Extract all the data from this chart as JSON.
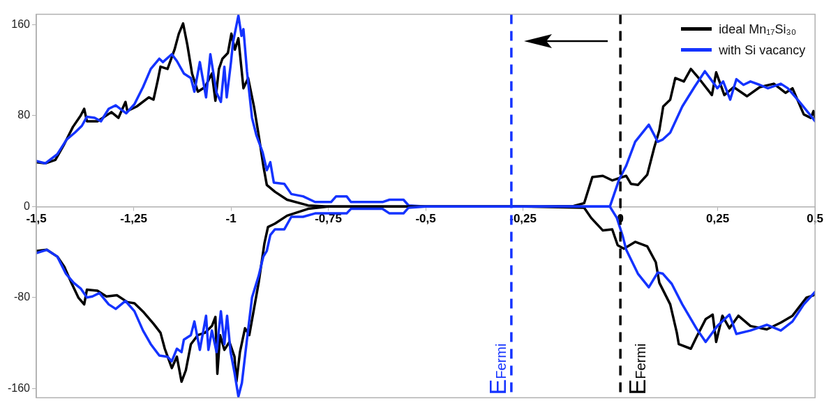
{
  "chart_data": {
    "type": "line",
    "xlim": [
      -1.5,
      0.5
    ],
    "ylim": [
      -168,
      169
    ],
    "xticks": [
      {
        "value": -1.5,
        "label": "-1,5"
      },
      {
        "value": -1.25,
        "label": "-1,25"
      },
      {
        "value": -1,
        "label": "-1"
      },
      {
        "value": -0.75,
        "label": "-0,75"
      },
      {
        "value": -0.5,
        "label": "-0,5"
      },
      {
        "value": -0.25,
        "label": "-0,25"
      },
      {
        "value": 0,
        "label": "0"
      },
      {
        "value": 0.25,
        "label": "0,25"
      },
      {
        "value": 0.5,
        "label": "0,5"
      }
    ],
    "yticks": [
      -160,
      -80,
      0,
      80,
      160
    ],
    "marker": "none",
    "line_style": "solid",
    "legend": "top right",
    "ref_lines": [
      {
        "axis": "x",
        "value": -0.28,
        "label": "E$_{Fermi}$",
        "color": "#1433ff",
        "line_style": "dashed"
      },
      {
        "axis": "x",
        "value": 0,
        "label": "E$_{Fermi}$",
        "color": "#000000",
        "line_style": "dashed"
      }
    ],
    "series": [
      {
        "name": "ideal Mn₁₇Si₃₀",
        "color": "#000000",
        "x": [
          -1.5,
          -1.477,
          -1.451,
          -1.428,
          -1.406,
          -1.386,
          -1.377,
          -1.37,
          -1.343,
          -1.307,
          -1.289,
          -1.271,
          -1.266,
          -1.242,
          -1.211,
          -1.199,
          -1.188,
          -1.181,
          -1.163,
          -1.145,
          -1.134,
          -1.123,
          -1.112,
          -1.1,
          -1.085,
          -1.067,
          -1.049,
          -1.04,
          -1.031,
          -1.022,
          -1.008,
          -0.999,
          -0.99,
          -0.981,
          -0.968,
          -0.956,
          -0.941,
          -0.929,
          -0.917,
          -0.908,
          -0.887,
          -0.856,
          -0.802,
          -0.75,
          -0.5,
          -0.25,
          -0.12,
          -0.093,
          -0.072,
          -0.045,
          -0.021,
          0.015,
          0.027,
          0.045,
          0.069,
          0.087,
          0.1,
          0.11,
          0.128,
          0.141,
          0.163,
          0.181,
          0.201,
          0.235,
          0.246,
          0.267,
          0.291,
          0.325,
          0.358,
          0.394,
          0.424,
          0.442,
          0.471,
          0.489,
          0.496,
          0.5
        ],
        "values": [
          39,
          38,
          41,
          55,
          70,
          80,
          86,
          75,
          75,
          83,
          78,
          92,
          84,
          88,
          96,
          94,
          111,
          123,
          121,
          138,
          152,
          161,
          142,
          117,
          101,
          105,
          117,
          93,
          121,
          130,
          135,
          152,
          138,
          148,
          104,
          113,
          88,
          63,
          36,
          19,
          13,
          6,
          1,
          0,
          0,
          0,
          0.5,
          3,
          26,
          27,
          23,
          27,
          20,
          19,
          28,
          52,
          67,
          88,
          94,
          113,
          110,
          121,
          113,
          98,
          118,
          98,
          105,
          97,
          105,
          108,
          100,
          104,
          81,
          78,
          84,
          78
        ]
      },
      {
        "name": "with Si vacancy",
        "color": "#1433ff",
        "x": [
          -1.5,
          -1.477,
          -1.446,
          -1.422,
          -1.401,
          -1.383,
          -1.37,
          -1.35,
          -1.334,
          -1.314,
          -1.296,
          -1.269,
          -1.248,
          -1.226,
          -1.206,
          -1.184,
          -1.175,
          -1.152,
          -1.139,
          -1.121,
          -1.103,
          -1.094,
          -1.08,
          -1.064,
          -1.053,
          -1.037,
          -1.026,
          -1.017,
          -1.011,
          -1,
          -0.995,
          -0.981,
          -0.973,
          -0.968,
          -0.959,
          -0.946,
          -0.935,
          -0.919,
          -0.908,
          -0.899,
          -0.89,
          -0.863,
          -0.845,
          -0.815,
          -0.784,
          -0.743,
          -0.73,
          -0.703,
          -0.692,
          -0.611,
          -0.593,
          -0.557,
          -0.544,
          -0.5,
          -0.25,
          -0.027,
          -0.003,
          0.015,
          0.038,
          0.073,
          0.096,
          0.109,
          0.128,
          0.159,
          0.19,
          0.217,
          0.249,
          0.264,
          0.282,
          0.298,
          0.316,
          0.334,
          0.358,
          0.379,
          0.412,
          0.43,
          0.46,
          0.484,
          0.5
        ],
        "values": [
          40,
          38,
          46,
          59,
          65,
          71,
          79,
          78,
          75,
          86,
          89,
          82,
          90,
          105,
          121,
          130,
          127,
          134,
          128,
          117,
          113,
          101,
          127,
          96,
          134,
          100,
          92,
          123,
          96,
          127,
          144,
          168,
          150,
          156,
          119,
          78,
          63,
          48,
          32,
          39,
          21,
          20,
          11,
          9,
          4,
          4,
          9,
          9,
          4,
          4,
          6,
          6,
          1,
          0,
          0,
          0,
          24,
          36,
          57,
          72,
          57,
          59,
          65,
          88,
          105,
          119,
          104,
          110,
          94,
          112,
          107,
          110,
          107,
          104,
          108,
          104,
          92,
          82,
          75
        ]
      },
      {
        "color": "#000000",
        "x": [
          -1.5,
          -1.473,
          -1.446,
          -1.428,
          -1.41,
          -1.392,
          -1.377,
          -1.37,
          -1.343,
          -1.32,
          -1.293,
          -1.266,
          -1.248,
          -1.224,
          -1.199,
          -1.181,
          -1.17,
          -1.152,
          -1.139,
          -1.127,
          -1.116,
          -1.103,
          -1.085,
          -1.067,
          -1.049,
          -1.04,
          -1.035,
          -1.028,
          -1.017,
          -1.004,
          -0.991,
          -0.986,
          -0.977,
          -0.964,
          -0.953,
          -0.941,
          -0.929,
          -0.914,
          -0.905,
          -0.887,
          -0.856,
          -0.802,
          -0.75,
          -0.5,
          -0.25,
          -0.093,
          -0.075,
          -0.045,
          -0.021,
          -0.007,
          0.009,
          0.038,
          0.069,
          0.091,
          0.1,
          0.128,
          0.145,
          0.15,
          0.181,
          0.195,
          0.219,
          0.237,
          0.246,
          0.262,
          0.28,
          0.303,
          0.334,
          0.376,
          0.412,
          0.442,
          0.478,
          0.496,
          0.5
        ],
        "values": [
          -39,
          -38,
          -44,
          -53,
          -67,
          -80,
          -86,
          -73,
          -74,
          -79,
          -78,
          -84,
          -85,
          -93,
          -103,
          -111,
          -125,
          -142,
          -132,
          -154,
          -144,
          -121,
          -113,
          -111,
          -105,
          -97,
          -147,
          -113,
          -126,
          -119,
          -132,
          -154,
          -128,
          -107,
          -113,
          -90,
          -67,
          -32,
          -18,
          -15,
          -8,
          -2,
          0,
          0,
          0,
          -1,
          -10,
          -21,
          -20,
          -34,
          -37,
          -31,
          -35,
          -49,
          -67,
          -86,
          -111,
          -121,
          -125,
          -115,
          -99,
          -95,
          -119,
          -96,
          -107,
          -96,
          -105,
          -108,
          -102,
          -96,
          -80,
          -78,
          -76
        ]
      },
      {
        "color": "#1433ff",
        "x": [
          -1.5,
          -1.473,
          -1.446,
          -1.424,
          -1.404,
          -1.386,
          -1.37,
          -1.356,
          -1.338,
          -1.314,
          -1.296,
          -1.271,
          -1.248,
          -1.226,
          -1.206,
          -1.184,
          -1.163,
          -1.152,
          -1.139,
          -1.127,
          -1.121,
          -1.103,
          -1.094,
          -1.08,
          -1.064,
          -1.058,
          -1.049,
          -1.037,
          -1.026,
          -1.017,
          -1.01,
          -1.001,
          -0.991,
          -0.981,
          -0.972,
          -0.959,
          -0.946,
          -0.929,
          -0.917,
          -0.908,
          -0.899,
          -0.887,
          -0.863,
          -0.845,
          -0.815,
          -0.784,
          -0.737,
          -0.703,
          -0.692,
          -0.611,
          -0.593,
          -0.557,
          -0.544,
          -0.5,
          -0.25,
          -0.027,
          -0.009,
          0.006,
          0.015,
          0.045,
          0.073,
          0.096,
          0.109,
          0.132,
          0.159,
          0.195,
          0.219,
          0.249,
          0.28,
          0.298,
          0.334,
          0.376,
          0.412,
          0.442,
          0.471,
          0.5
        ],
        "values": [
          -41,
          -38,
          -44,
          -59,
          -67,
          -72,
          -80,
          -79,
          -76,
          -86,
          -90,
          -83,
          -92,
          -109,
          -121,
          -131,
          -132,
          -136,
          -125,
          -128,
          -117,
          -113,
          -101,
          -126,
          -96,
          -126,
          -109,
          -128,
          -92,
          -121,
          -96,
          -128,
          -146,
          -167,
          -155,
          -117,
          -80,
          -61,
          -44,
          -39,
          -25,
          -20,
          -20,
          -9,
          -9,
          -6,
          -6,
          -6,
          -2,
          -2,
          -6,
          -6,
          -1,
          0,
          0,
          0,
          -10,
          -26,
          -38,
          -59,
          -71,
          -58,
          -59,
          -68,
          -86,
          -107,
          -119,
          -105,
          -95,
          -112,
          -109,
          -104,
          -109,
          -101,
          -86,
          -75
        ]
      }
    ]
  }
}
